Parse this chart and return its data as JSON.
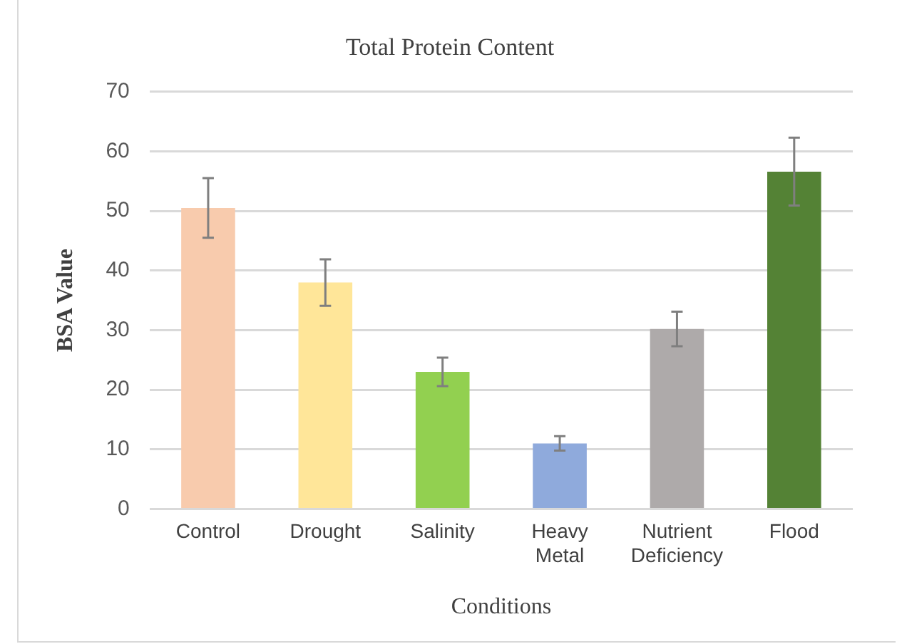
{
  "chart_data": {
    "type": "bar",
    "title": "Total Protein Content",
    "xlabel": "Conditions",
    "ylabel": "BSA Value",
    "categories": [
      "Control",
      "Drought",
      "Salinity",
      "Heavy Metal",
      "Nutrient Deficiency",
      "Flood"
    ],
    "values": [
      50.5,
      38,
      23,
      11,
      30.2,
      56.6
    ],
    "errors": [
      5,
      3.9,
      2.4,
      1.2,
      2.9,
      5.7
    ],
    "colors": [
      "#f8cbad",
      "#ffe699",
      "#92d050",
      "#8faadc",
      "#aeaaaa",
      "#548235"
    ],
    "ylim": [
      0,
      70
    ],
    "yticks": [
      0,
      10,
      20,
      30,
      40,
      50,
      60,
      70
    ],
    "grid": "y",
    "legend": false
  }
}
